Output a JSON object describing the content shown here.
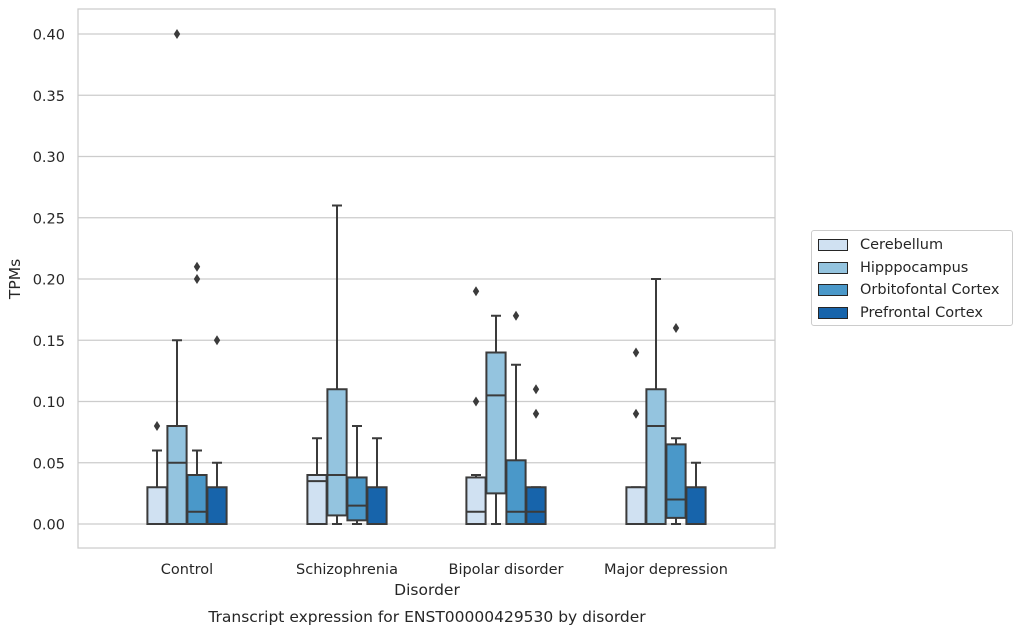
{
  "chart_data": {
    "type": "box",
    "title": "Transcript expression for ENST00000429530 by disorder",
    "xlabel": "Disorder",
    "ylabel": "TPMs",
    "ylim": [
      -0.02,
      0.42
    ],
    "yticks": [
      "0.00",
      "0.05",
      "0.10",
      "0.15",
      "0.20",
      "0.25",
      "0.30",
      "0.35",
      "0.40"
    ],
    "grid": true,
    "legend_position": "outside-right",
    "categories": [
      "Control",
      "Schizophrenia",
      "Bipolar disorder",
      "Major depression"
    ],
    "series": [
      {
        "name": "Cerebellum",
        "color": "#d0e1f2",
        "boxes": [
          {
            "whislo": 0.0,
            "q1": 0.0,
            "med": 0.0,
            "q3": 0.03,
            "whishi": 0.06,
            "fliers": [
              0.08
            ]
          },
          {
            "whislo": 0.0,
            "q1": 0.0,
            "med": 0.035,
            "q3": 0.04,
            "whishi": 0.07,
            "fliers": []
          },
          {
            "whislo": 0.0,
            "q1": 0.0,
            "med": 0.01,
            "q3": 0.038,
            "whishi": 0.04,
            "fliers": [
              0.1,
              0.19
            ]
          },
          {
            "whislo": 0.0,
            "q1": 0.0,
            "med": 0.0,
            "q3": 0.03,
            "whishi": 0.03,
            "fliers": [
              0.09,
              0.14
            ]
          }
        ]
      },
      {
        "name": "Hipppocampus",
        "color": "#94c4df",
        "boxes": [
          {
            "whislo": 0.0,
            "q1": 0.0,
            "med": 0.05,
            "q3": 0.08,
            "whishi": 0.15,
            "fliers": [
              0.4
            ]
          },
          {
            "whislo": 0.0,
            "q1": 0.007,
            "med": 0.04,
            "q3": 0.11,
            "whishi": 0.26,
            "fliers": []
          },
          {
            "whislo": 0.0,
            "q1": 0.025,
            "med": 0.105,
            "q3": 0.14,
            "whishi": 0.17,
            "fliers": []
          },
          {
            "whislo": 0.0,
            "q1": 0.0,
            "med": 0.08,
            "q3": 0.11,
            "whishi": 0.2,
            "fliers": []
          }
        ]
      },
      {
        "name": "Orbitofontal Cortex",
        "color": "#4a98c9",
        "boxes": [
          {
            "whislo": 0.0,
            "q1": 0.0,
            "med": 0.01,
            "q3": 0.04,
            "whishi": 0.06,
            "fliers": [
              0.2,
              0.21
            ]
          },
          {
            "whislo": 0.0,
            "q1": 0.003,
            "med": 0.015,
            "q3": 0.038,
            "whishi": 0.08,
            "fliers": []
          },
          {
            "whislo": 0.0,
            "q1": 0.0,
            "med": 0.01,
            "q3": 0.052,
            "whishi": 0.13,
            "fliers": [
              0.17
            ]
          },
          {
            "whislo": 0.0,
            "q1": 0.005,
            "med": 0.02,
            "q3": 0.065,
            "whishi": 0.07,
            "fliers": [
              0.16
            ]
          }
        ]
      },
      {
        "name": "Prefrontal Cortex",
        "color": "#1764ab",
        "boxes": [
          {
            "whislo": 0.0,
            "q1": 0.0,
            "med": 0.0,
            "q3": 0.03,
            "whishi": 0.05,
            "fliers": [
              0.15
            ]
          },
          {
            "whislo": 0.0,
            "q1": 0.0,
            "med": 0.0,
            "q3": 0.03,
            "whishi": 0.07,
            "fliers": []
          },
          {
            "whislo": 0.0,
            "q1": 0.0,
            "med": 0.01,
            "q3": 0.03,
            "whishi": 0.03,
            "fliers": [
              0.09,
              0.11
            ]
          },
          {
            "whislo": 0.0,
            "q1": 0.0,
            "med": 0.0,
            "q3": 0.03,
            "whishi": 0.05,
            "fliers": []
          }
        ]
      }
    ]
  }
}
